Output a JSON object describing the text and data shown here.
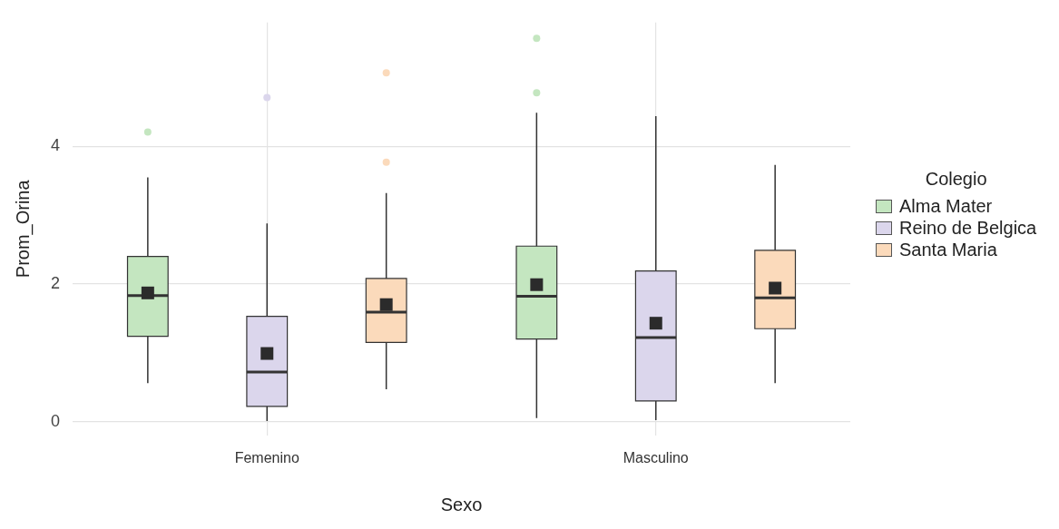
{
  "chart_data": {
    "type": "box",
    "xlabel": "Sexo",
    "ylabel": "Prom_Orina",
    "legend_title": "Colegio",
    "legend": "right",
    "grid": true,
    "categories": [
      "Femenino",
      "Masculino"
    ],
    "ylim": [
      -0.2,
      5.8
    ],
    "yticks": [
      0,
      2,
      4
    ],
    "series": [
      {
        "name": "Alma Mater",
        "color": "#c4e6c0",
        "boxes": [
          {
            "low": 0.56,
            "q1": 1.24,
            "median": 1.83,
            "q3": 2.4,
            "high": 3.55,
            "mean": 1.87,
            "outliers": [
              4.21
            ]
          },
          {
            "low": 0.05,
            "q1": 1.2,
            "median": 1.82,
            "q3": 2.55,
            "high": 4.49,
            "mean": 1.99,
            "outliers": [
              4.78,
              5.57
            ]
          }
        ]
      },
      {
        "name": "Reino de Belgica",
        "color": "#dbd6ec",
        "boxes": [
          {
            "low": 0.01,
            "q1": 0.22,
            "median": 0.72,
            "q3": 1.53,
            "high": 2.88,
            "mean": 0.99,
            "outliers": [
              4.71
            ]
          },
          {
            "low": 0.02,
            "q1": 0.3,
            "median": 1.22,
            "q3": 2.19,
            "high": 4.44,
            "mean": 1.43
          }
        ]
      },
      {
        "name": "Santa Maria",
        "color": "#fbdabb",
        "boxes": [
          {
            "low": 0.47,
            "q1": 1.15,
            "median": 1.59,
            "q3": 2.08,
            "high": 3.32,
            "mean": 1.7,
            "outliers": [
              3.77,
              5.07
            ]
          },
          {
            "low": 0.56,
            "q1": 1.35,
            "median": 1.8,
            "q3": 2.49,
            "high": 3.73,
            "mean": 1.94
          }
        ]
      }
    ]
  }
}
